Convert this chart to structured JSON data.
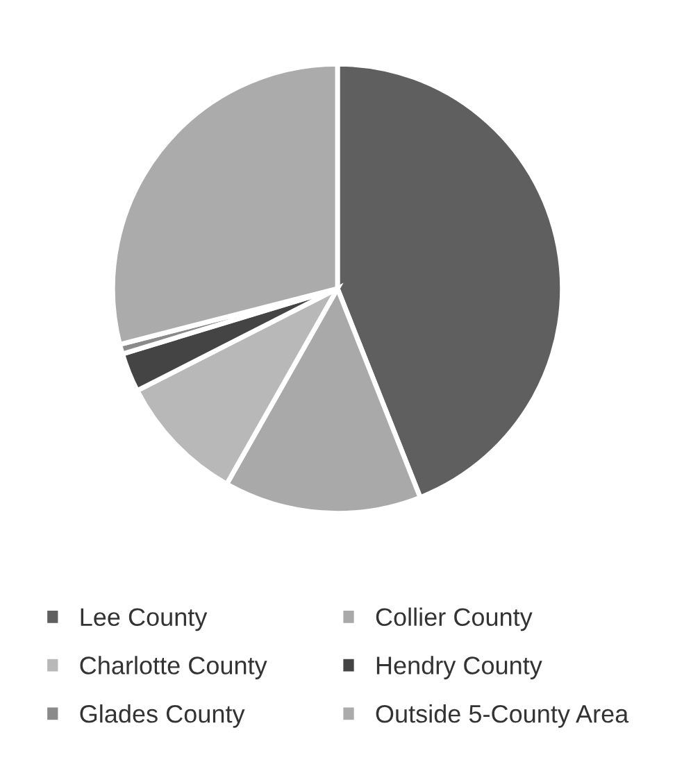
{
  "chart_data": {
    "type": "pie",
    "categories": [
      "Lee County",
      "Collier County",
      "Charlotte County",
      "Hendry County",
      "Glades County",
      "Outside 5-County Area"
    ],
    "values": [
      44.0,
      14.2,
      9.3,
      2.8,
      0.7,
      29.0
    ],
    "colors": [
      "#5f5f5f",
      "#a9a9a9",
      "#b8b8b8",
      "#444444",
      "#8a8a8a",
      "#ababab"
    ],
    "legend": "bottom"
  }
}
